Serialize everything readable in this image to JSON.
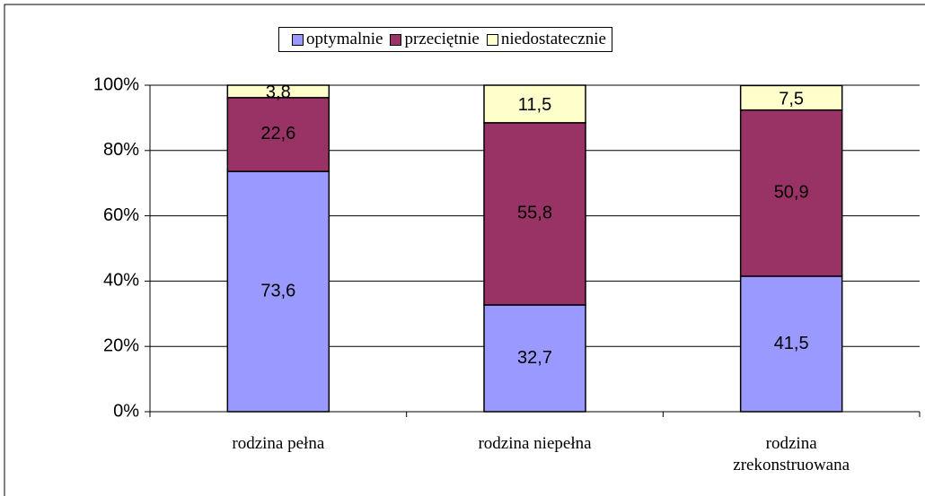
{
  "chart_data": {
    "type": "stacked_bar",
    "categories": [
      "rodzina pełna",
      "rodzina niepełna",
      "rodzina zrekonstruowana"
    ],
    "series": [
      {
        "name": "optymalnie",
        "color": "#9999ff",
        "values": [
          73.6,
          32.7,
          41.5
        ],
        "value_labels": [
          "73,6",
          "32,7",
          "41,5"
        ]
      },
      {
        "name": "przeciętnie",
        "color": "#993366",
        "values": [
          22.6,
          55.8,
          50.9
        ],
        "value_labels": [
          "22,6",
          "55,8",
          "50,9"
        ]
      },
      {
        "name": "niedostatecznie",
        "color": "#ffffcc",
        "values": [
          3.8,
          11.5,
          7.5
        ],
        "value_labels": [
          "3,8",
          "11,5",
          "7,5"
        ]
      }
    ],
    "ylim": [
      0,
      100
    ],
    "yticks": [
      {
        "value": 0,
        "label": "0%"
      },
      {
        "value": 20,
        "label": "20%"
      },
      {
        "value": 40,
        "label": "40%"
      },
      {
        "value": 60,
        "label": "60%"
      },
      {
        "value": 80,
        "label": "80%"
      },
      {
        "value": 100,
        "label": "100%"
      }
    ],
    "grid": true,
    "legend": "top"
  }
}
